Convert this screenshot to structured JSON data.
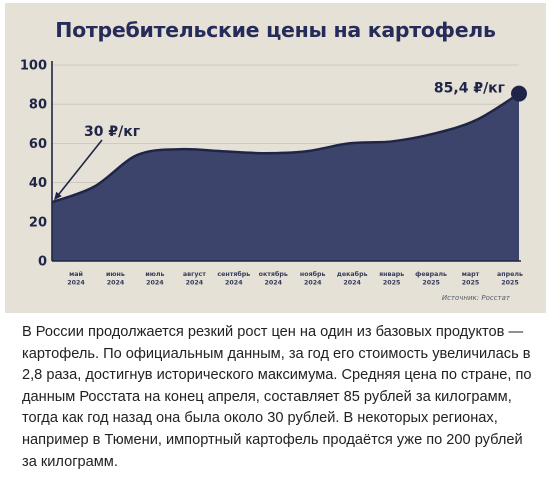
{
  "chart_data": {
    "type": "area",
    "title": "Потребительские цены на картофель",
    "categories": [
      [
        "май",
        "2024"
      ],
      [
        "июнь",
        "2024"
      ],
      [
        "июль",
        "2024"
      ],
      [
        "август",
        "2024"
      ],
      [
        "сентябрь",
        "2024"
      ],
      [
        "октябрь",
        "2024"
      ],
      [
        "ноябрь",
        "2024"
      ],
      [
        "декабрь",
        "2024"
      ],
      [
        "январь",
        "2025"
      ],
      [
        "февраль",
        "2025"
      ],
      [
        "март",
        "2025"
      ],
      [
        "апрель",
        "2025"
      ]
    ],
    "values": [
      30,
      38,
      54,
      57,
      56,
      55,
      56,
      60,
      61,
      65,
      72,
      85.4
    ],
    "ylim": [
      0,
      100
    ],
    "yticks": [
      "0",
      "20",
      "40",
      "60",
      "80",
      "100"
    ],
    "annotations": {
      "start": "30 ₽/кг",
      "end": "85,4 ₽/кг"
    },
    "source": "Источник: Росстат",
    "colors": {
      "area": "#363d67",
      "marker": "#1f2547",
      "title": "#262c59"
    }
  },
  "article": {
    "text": "В России продолжается резкий рост цен на один из базовых продуктов — картофель. По официальным данным, за год его стоимость увеличилась в 2,8 раза, достигнув исторического максимума. Средняя цена по стране, по данным Росстата на конец апреля, составляет 85 рублей за килограмм, тогда как год назад она была около 30 рублей. В некоторых регионах, например в Тюмени, импортный картофель продаётся уже по 200 рублей за килограмм."
  }
}
